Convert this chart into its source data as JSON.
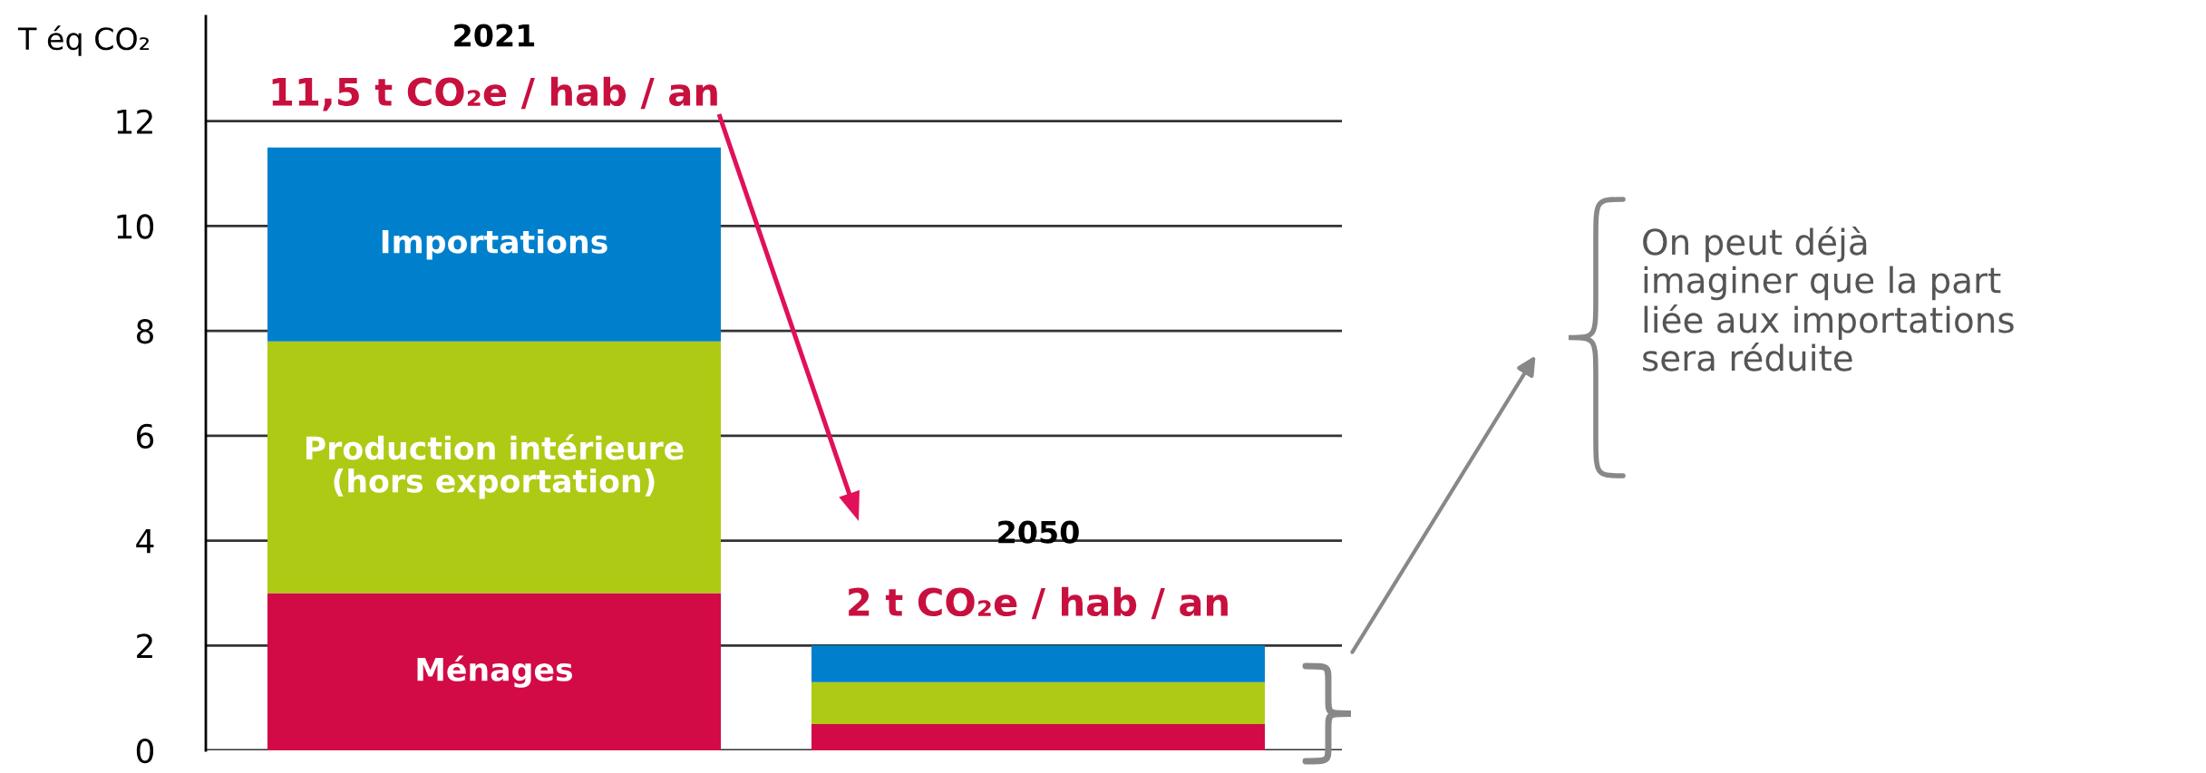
{
  "chart_data": {
    "type": "bar",
    "stacked": true,
    "ylabel": "T éq CO₂",
    "categories": [
      "2021",
      "2050"
    ],
    "series": [
      {
        "name": "Ménages",
        "color": "#d20a46",
        "values": [
          3.0,
          0.5
        ]
      },
      {
        "name": "Production intérieure\n(hors exportation)",
        "color": "#afca14",
        "values": [
          4.8,
          0.8
        ]
      },
      {
        "name": "Importations",
        "color": "#0080cc",
        "values": [
          3.7,
          0.7
        ]
      }
    ],
    "ylim": [
      0,
      14
    ],
    "yticks": [
      0,
      2,
      4,
      6,
      8,
      10,
      12
    ],
    "grid": "y",
    "legend": false,
    "tick_labels": "y",
    "annotations": [
      "11,5 t CO₂e / hab / an",
      "2 t CO₂e / hab / an",
      "On peut déjà\nimaginer que la part\nliée aux importations\nsera réduite"
    ]
  }
}
